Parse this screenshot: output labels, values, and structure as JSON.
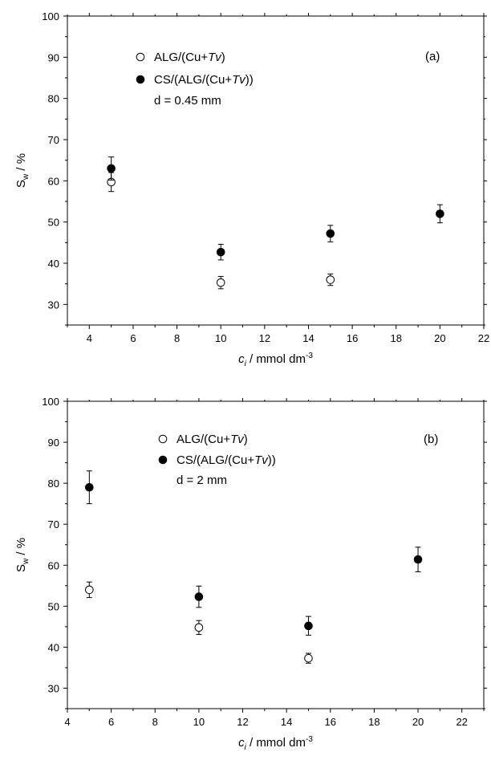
{
  "chart_data": [
    {
      "type": "scatter",
      "panel_label": "(a)",
      "xlabel": "c",
      "xlabel_sub": "i",
      "xlabel_unit": " / mmol dm",
      "xlabel_sup": "-3",
      "ylabel": "S",
      "ylabel_sub": "w",
      "ylabel_unit": " / %",
      "xlim": [
        3,
        22
      ],
      "ylim": [
        25,
        100
      ],
      "xticks": [
        4,
        6,
        8,
        10,
        12,
        14,
        16,
        18,
        20,
        22
      ],
      "yticks": [
        30,
        40,
        50,
        60,
        70,
        80,
        90,
        100
      ],
      "grid": false,
      "legend_position": "top-left",
      "legend_note": "d = 0.45 mm",
      "series": [
        {
          "name_prefix": "ALG/(Cu+",
          "name_italic": "Tv",
          "name_suffix": ")",
          "marker": "open-circle",
          "x": [
            5,
            10,
            15
          ],
          "y": [
            59.7,
            35.3,
            36.0
          ],
          "err": [
            2.3,
            1.5,
            1.4
          ]
        },
        {
          "name_prefix": "CS/(ALG/(Cu+",
          "name_italic": "Tv",
          "name_suffix": "))",
          "marker": "filled-circle",
          "x": [
            5,
            10,
            15,
            20
          ],
          "y": [
            63.0,
            42.7,
            47.2,
            52.0
          ],
          "err": [
            2.8,
            1.9,
            2.0,
            2.2
          ]
        }
      ]
    },
    {
      "type": "scatter",
      "panel_label": "(b)",
      "xlabel": "c",
      "xlabel_sub": "i",
      "xlabel_unit": " / mmol dm",
      "xlabel_sup": "-3",
      "ylabel": "S",
      "ylabel_sub": "w",
      "ylabel_unit": " / %",
      "xlim": [
        4,
        23
      ],
      "ylim": [
        25,
        100
      ],
      "xticks": [
        4,
        6,
        8,
        10,
        12,
        14,
        16,
        18,
        20,
        22
      ],
      "yticks": [
        30,
        40,
        50,
        60,
        70,
        80,
        90,
        100
      ],
      "grid": false,
      "legend_position": "top-center",
      "legend_note": "d = 2 mm",
      "series": [
        {
          "name_prefix": "ALG/(Cu+",
          "name_italic": "Tv",
          "name_suffix": ")",
          "marker": "open-circle",
          "x": [
            5,
            10,
            15
          ],
          "y": [
            54.0,
            44.8,
            37.3
          ],
          "err": [
            1.9,
            1.7,
            1.2
          ]
        },
        {
          "name_prefix": "CS/(ALG/(Cu+",
          "name_italic": "Tv",
          "name_suffix": "))",
          "marker": "filled-circle",
          "x": [
            5,
            10,
            15,
            20
          ],
          "y": [
            79.0,
            52.3,
            45.2,
            61.4
          ],
          "err": [
            4.0,
            2.6,
            2.3,
            3.0
          ]
        }
      ]
    }
  ]
}
